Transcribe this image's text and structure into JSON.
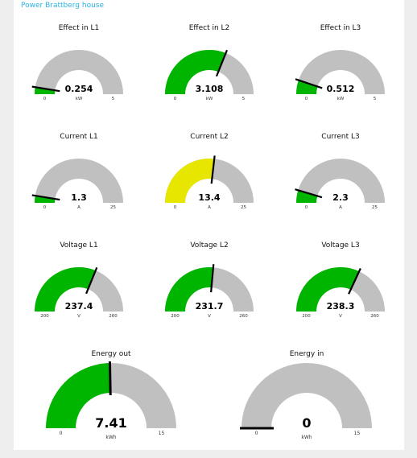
{
  "dashboard": {
    "group_title": "Power Brattberg house"
  },
  "colors": {
    "track": "#c0c0c0",
    "green": "#00b500",
    "yellow": "#e6e600",
    "needle": "#000000",
    "title_link": "#2bb3e6",
    "panel_bg": "#ffffff",
    "page_bg": "#eeeeee"
  },
  "gauges": [
    {
      "id": "effect-l1",
      "title": "Effect in L1",
      "value": 0.254,
      "value_text": "0.254",
      "min": 0,
      "max": 5,
      "min_label": "0",
      "max_label": "5",
      "unit": "kW",
      "color": "green"
    },
    {
      "id": "effect-l2",
      "title": "Effect in L2",
      "value": 3.108,
      "value_text": "3.108",
      "min": 0,
      "max": 5,
      "min_label": "0",
      "max_label": "5",
      "unit": "kW",
      "color": "green"
    },
    {
      "id": "effect-l3",
      "title": "Effect in L3",
      "value": 0.512,
      "value_text": "0.512",
      "min": 0,
      "max": 5,
      "min_label": "0",
      "max_label": "5",
      "unit": "kW",
      "color": "green"
    },
    {
      "id": "current-l1",
      "title": "Current L1",
      "value": 1.3,
      "value_text": "1.3",
      "min": 0,
      "max": 25,
      "min_label": "0",
      "max_label": "25",
      "unit": "A",
      "color": "green"
    },
    {
      "id": "current-l2",
      "title": "Current L2",
      "value": 13.4,
      "value_text": "13.4",
      "min": 0,
      "max": 25,
      "min_label": "0",
      "max_label": "25",
      "unit": "A",
      "color": "yellow"
    },
    {
      "id": "current-l3",
      "title": "Current L3",
      "value": 2.3,
      "value_text": "2.3",
      "min": 0,
      "max": 25,
      "min_label": "0",
      "max_label": "25",
      "unit": "A",
      "color": "green"
    },
    {
      "id": "voltage-l1",
      "title": "Voltage L1",
      "value": 237.4,
      "value_text": "237.4",
      "min": 200,
      "max": 260,
      "min_label": "200",
      "max_label": "260",
      "unit": "V",
      "color": "green"
    },
    {
      "id": "voltage-l2",
      "title": "Voltage L2",
      "value": 231.7,
      "value_text": "231.7",
      "min": 200,
      "max": 260,
      "min_label": "200",
      "max_label": "260",
      "unit": "V",
      "color": "green"
    },
    {
      "id": "voltage-l3",
      "title": "Voltage L3",
      "value": 238.3,
      "value_text": "238.3",
      "min": 200,
      "max": 260,
      "min_label": "200",
      "max_label": "260",
      "unit": "V",
      "color": "green"
    },
    {
      "id": "energy-out",
      "title": "Energy out",
      "value": 7.41,
      "value_text": "7.41",
      "min": 0,
      "max": 15,
      "min_label": "0",
      "max_label": "15",
      "unit": "kWh",
      "color": "green"
    },
    {
      "id": "energy-in",
      "title": "Energy in",
      "value": 0,
      "value_text": "0",
      "min": 0,
      "max": 15,
      "min_label": "0",
      "max_label": "15",
      "unit": "kWh",
      "color": "green"
    }
  ]
}
